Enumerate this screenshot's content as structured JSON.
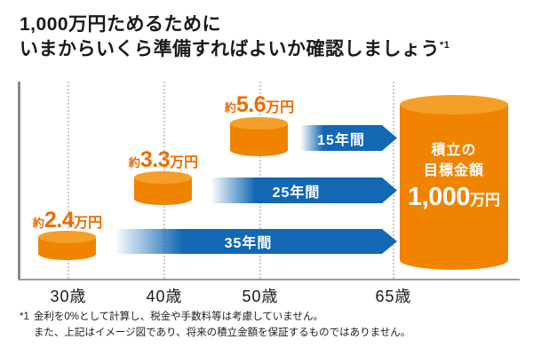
{
  "title": {
    "line1": "1,000万円ためるために",
    "line2": "いまからいくら準備すればよいか確認しましょう",
    "superscript": "*1"
  },
  "chart_data": {
    "type": "bar",
    "title": "1,000万円ためるために いまからいくら準備すればよいか確認しましょう",
    "categories": [
      "30歳",
      "40歳",
      "50歳",
      "65歳"
    ],
    "unit": "万円/月",
    "bars": [
      {
        "age": "30歳",
        "prefix": "約",
        "amount": "2.4",
        "unit": "万円",
        "monthly_amount": 2.4,
        "period_years": 35,
        "period_label": "35年間"
      },
      {
        "age": "40歳",
        "prefix": "約",
        "amount": "3.3",
        "unit": "万円",
        "monthly_amount": 3.3,
        "period_years": 25,
        "period_label": "25年間"
      },
      {
        "age": "50歳",
        "prefix": "約",
        "amount": "5.6",
        "unit": "万円",
        "monthly_amount": 5.6,
        "period_years": 15,
        "period_label": "15年間"
      }
    ],
    "goal": {
      "age": "65歳",
      "title_line1": "積立の",
      "title_line2": "目標金額",
      "amount": "1,000",
      "unit": "万円",
      "value": 1000
    },
    "legend": "none",
    "grid": "vertical-dotted"
  },
  "footnote": {
    "marker": "*1",
    "line1": "金利を0%として計算し、税金や手数料等は考慮していません。",
    "line2": "また、上記はイメージ図であり、将来の積立金額を保証するものではありません。"
  },
  "colors": {
    "cylinder_orange": "#F08300",
    "cylinder_top_orange": "#F59F2B",
    "value_text_orange": "#ED6C00",
    "arrow_blue": "#1268B3",
    "title_text": "#1A1A1A"
  }
}
